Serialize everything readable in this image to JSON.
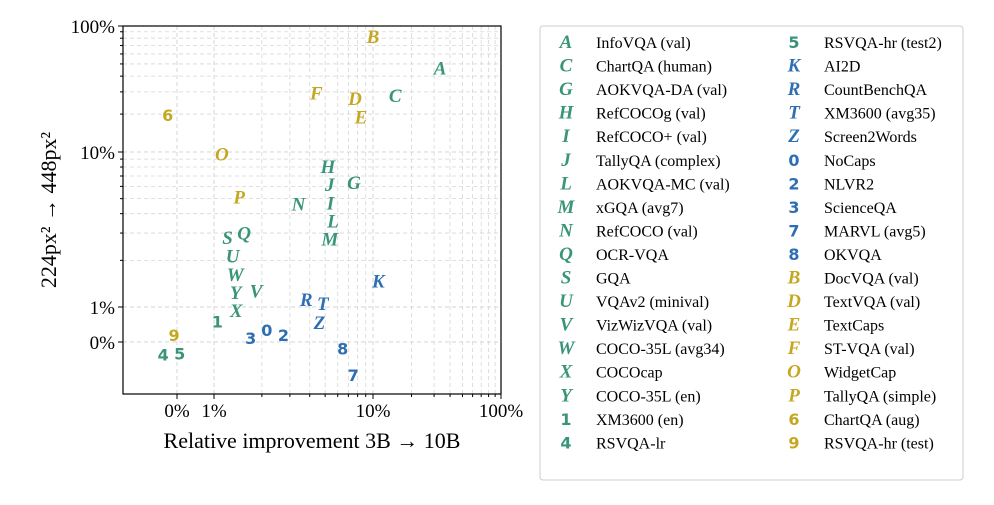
{
  "chart_data": {
    "type": "scatter",
    "xlabel": "Relative improvement 3B → 10B",
    "ylabel": "224px² → 448px²",
    "x_scale": "symlog",
    "y_scale": "symlog",
    "xlim": [
      -1.5,
      100
    ],
    "ylim": [
      -1.5,
      100
    ],
    "x_ticks": [
      {
        "v": 0,
        "label": "0%"
      },
      {
        "v": 1,
        "label": "1%"
      },
      {
        "v": 10,
        "label": "10%"
      },
      {
        "v": 100,
        "label": "100%"
      }
    ],
    "y_ticks": [
      {
        "v": 0,
        "label": "0%"
      },
      {
        "v": 1,
        "label": "1%"
      },
      {
        "v": 10,
        "label": "10%"
      },
      {
        "v": 100,
        "label": "100%"
      }
    ],
    "grid": true,
    "legend_placement": "outside-right",
    "colors": {
      "green": "#3a9479",
      "blue": "#2e6fb3",
      "gold": "#c6a722"
    },
    "points": [
      {
        "m": "A",
        "label": "InfoVQA (val)",
        "c": "green",
        "x": 33.4,
        "y": 46
      },
      {
        "m": "C",
        "label": "ChartQA (human)",
        "c": "green",
        "x": 14.9,
        "y": 27.8
      },
      {
        "m": "G",
        "label": "AOKVQA-DA (val)",
        "c": "green",
        "x": 7.6,
        "y": 6.3
      },
      {
        "m": "H",
        "label": "RefCOCOg (val)",
        "c": "green",
        "x": 5.2,
        "y": 6.4
      },
      {
        "m": "I",
        "label": "RefCOCO+ (val)",
        "c": "green",
        "x": 5.4,
        "y": 5.5
      },
      {
        "m": "J",
        "label": "TallyQA (complex)",
        "c": "green",
        "x": 5.35,
        "y": 6.0
      },
      {
        "m": "L",
        "label": "AOKVQA-MC (val)",
        "c": "green",
        "x": 5.6,
        "y": 3.55
      },
      {
        "m": "M",
        "label": "xGQA (avg7)",
        "c": "green",
        "x": 5.35,
        "y": 2.94
      },
      {
        "m": "N",
        "label": "RefCOCO (val)",
        "c": "green",
        "x": 3.4,
        "y": 4.6
      },
      {
        "m": "Q",
        "label": "OCR-VQA",
        "c": "green",
        "x": 1.47,
        "y": 2.99
      },
      {
        "m": "S",
        "label": "GQA",
        "c": "green",
        "x": 1.28,
        "y": 2.58
      },
      {
        "m": "U",
        "label": "VQAv2 (minival)",
        "c": "green",
        "x": 1.31,
        "y": 1.82
      },
      {
        "m": "V",
        "label": "VizWizVQA (val)",
        "c": "green",
        "x": 1.84,
        "y": 1.26
      },
      {
        "m": "W",
        "label": "COCO-35L (avg34)",
        "c": "green",
        "x": 1.36,
        "y": 1.43
      },
      {
        "m": "X",
        "label": "COCOcap",
        "c": "green",
        "x": 1.38,
        "y": 1.26
      },
      {
        "m": "Y",
        "label": "COCO-35L (en)",
        "c": "green",
        "x": 1.37,
        "y": 1.3
      },
      {
        "m": "1",
        "label": "XM3600 (en)",
        "c": "green",
        "x": 1.05,
        "y": 0.58
      },
      {
        "m": "4",
        "label": "RSVQA-lr",
        "c": "green",
        "x": -0.16,
        "y": -0.34
      },
      {
        "m": "5",
        "label": "RSVQA-hr (test2)",
        "c": "green",
        "x": -0.14,
        "y": -0.29
      },
      {
        "m": "K",
        "label": "AI2D",
        "c": "blue",
        "x": 11,
        "y": 1.46
      },
      {
        "m": "R",
        "label": "CountBenchQA",
        "c": "blue",
        "x": 4.0,
        "y": 1.11
      },
      {
        "m": "T",
        "label": "XM3600 (avg35)",
        "c": "blue",
        "x": 4.6,
        "y": 1.0
      },
      {
        "m": "Z",
        "label": "Screen2Words",
        "c": "blue",
        "x": 4.6,
        "y": 0.63
      },
      {
        "m": "0",
        "label": "NoCaps",
        "c": "blue",
        "x": 2.25,
        "y": 0.34
      },
      {
        "m": "2",
        "label": "NLVR2",
        "c": "blue",
        "x": 2.45,
        "y": 0.2
      },
      {
        "m": "3",
        "label": "ScienceQA",
        "c": "blue",
        "x": 1.81,
        "y": 0.11
      },
      {
        "m": "7",
        "label": "MARVL (avg5)",
        "c": "blue",
        "x": 7.5,
        "y": -0.94
      },
      {
        "m": "8",
        "label": "OKVQA",
        "c": "blue",
        "x": 6.45,
        "y": -0.18
      },
      {
        "m": "B",
        "label": "DocVQA (val)",
        "c": "gold",
        "x": 10,
        "y": 82
      },
      {
        "m": "D",
        "label": "TextVQA (val)",
        "c": "gold",
        "x": 7.7,
        "y": 25.9
      },
      {
        "m": "E",
        "label": "TextCaps",
        "c": "gold",
        "x": 8.4,
        "y": 19
      },
      {
        "m": "F",
        "label": "ST-VQA (val)",
        "c": "gold",
        "x": 4.4,
        "y": 29
      },
      {
        "m": "O",
        "label": "WidgetCap",
        "c": "gold",
        "x": 1.12,
        "y": 9.6
      },
      {
        "m": "P",
        "label": "TallyQA (simple)",
        "c": "gold",
        "x": 1.44,
        "y": 5.1
      },
      {
        "m": "6",
        "label": "ChartQA (aug)",
        "c": "gold",
        "x": -0.25,
        "y": 19.7
      },
      {
        "m": "9",
        "label": "RSVQA-hr (test)",
        "c": "gold",
        "x": -0.08,
        "y": 0.15
      }
    ]
  }
}
